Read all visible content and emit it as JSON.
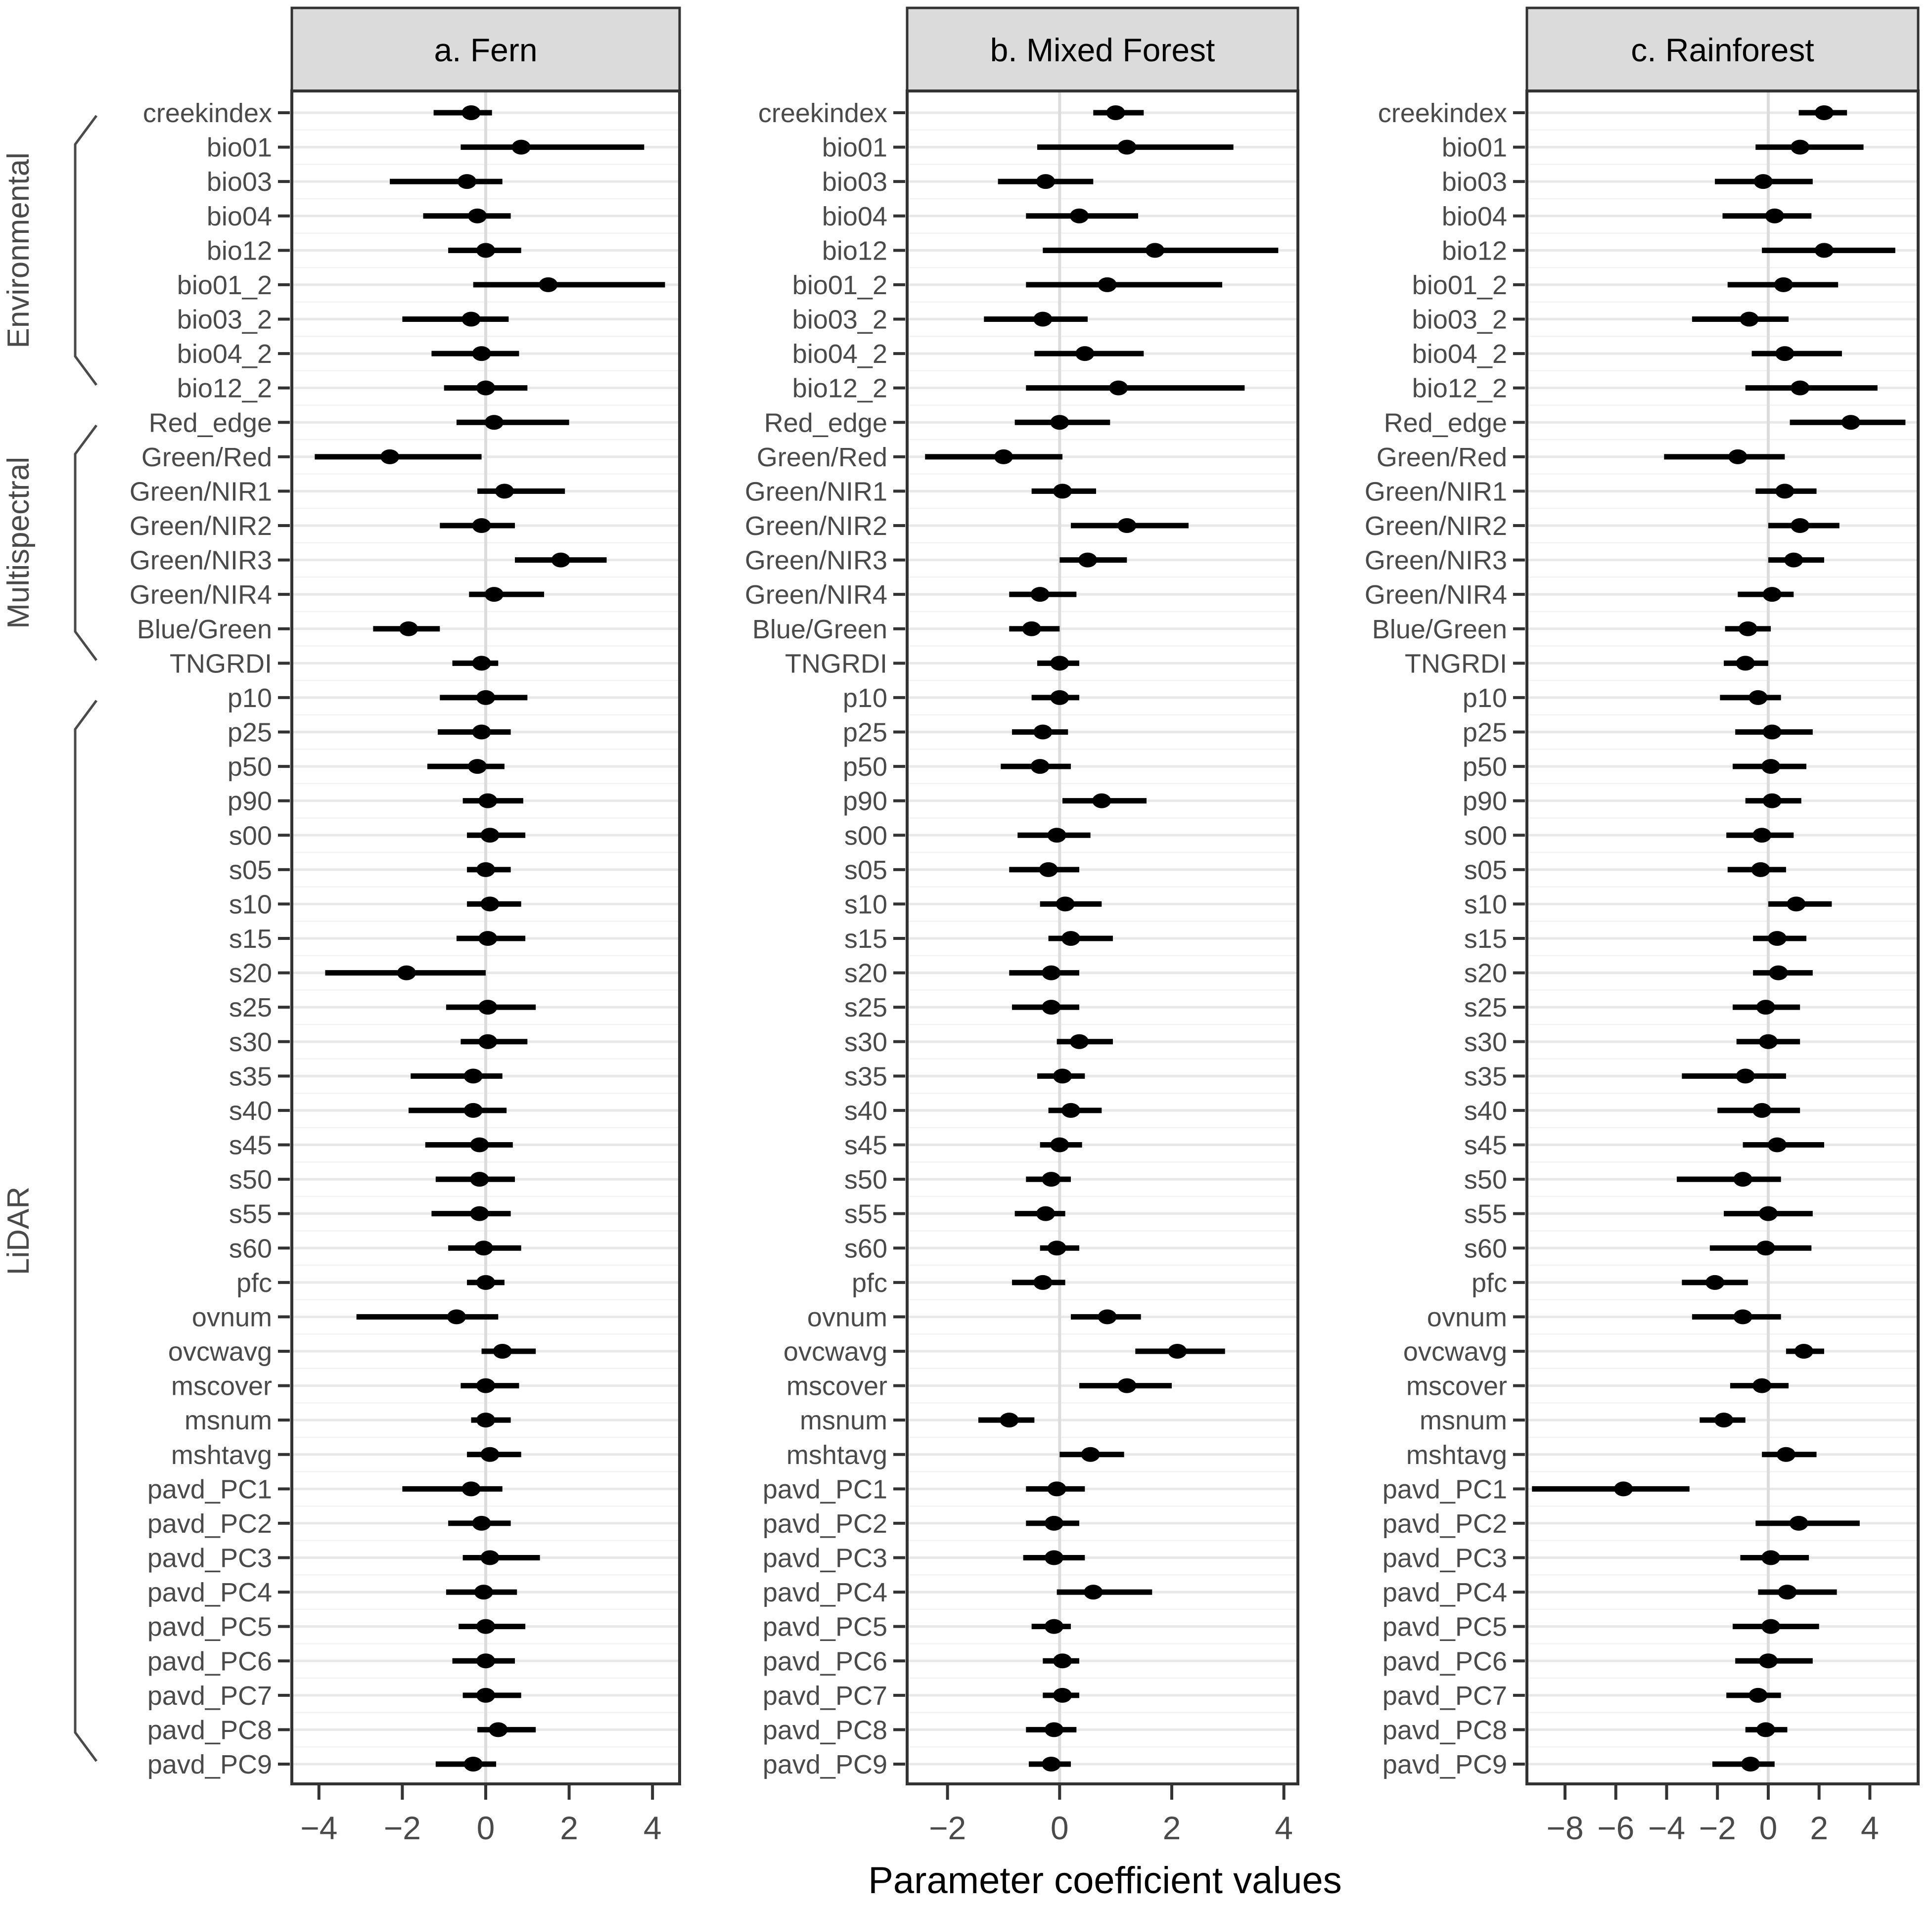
{
  "figure": {
    "colors": {
      "point": "#000000",
      "strip_bg": "#dbdbdb",
      "panel_border": "#333333",
      "grid_major": "#e8e8e8",
      "grid_minor": "#f2f2f2",
      "zero_line": "#dcdcdc",
      "axis_text": "#4a4a4a",
      "strip_text": "#000000",
      "bracket": "#4a4a4a",
      "background": "#ffffff"
    }
  },
  "chart_data": {
    "type": "scatter",
    "subtype": "forest-plot-dot-whisker",
    "xlabel": "Parameter coefficient values",
    "grid": "horizontal-major-minor, vertical zero line only",
    "legend": "none",
    "categories": [
      "creekindex",
      "bio01",
      "bio03",
      "bio04",
      "bio12",
      "bio01_2",
      "bio03_2",
      "bio04_2",
      "bio12_2",
      "Red_edge",
      "Green/Red",
      "Green/NIR1",
      "Green/NIR2",
      "Green/NIR3",
      "Green/NIR4",
      "Blue/Green",
      "TNGRDI",
      "p10",
      "p25",
      "p50",
      "p90",
      "s00",
      "s05",
      "s10",
      "s15",
      "s20",
      "s25",
      "s30",
      "s35",
      "s40",
      "s45",
      "s50",
      "s55",
      "s60",
      "pfc",
      "ovnum",
      "ovcwavg",
      "mscover",
      "msnum",
      "mshtavg",
      "pavd_PC1",
      "pavd_PC2",
      "pavd_PC3",
      "pavd_PC4",
      "pavd_PC5",
      "pavd_PC6",
      "pavd_PC7",
      "pavd_PC8",
      "pavd_PC9"
    ],
    "groups": [
      {
        "label": "Environmental",
        "from": 0,
        "to": 8
      },
      {
        "label": "Multispectral",
        "from": 9,
        "to": 16
      },
      {
        "label": "LiDAR",
        "from": 17,
        "to": 48
      }
    ],
    "value_format": "[estimate, ci_low, ci_high]",
    "panels": [
      {
        "title": "a. Fern",
        "xlim": [
          -4.65,
          4.65
        ],
        "xticks": [
          -4,
          -2,
          0,
          2,
          4
        ],
        "points": [
          [
            -0.35,
            -1.25,
            0.15
          ],
          [
            0.85,
            -0.6,
            3.8
          ],
          [
            -0.45,
            -2.3,
            0.4
          ],
          [
            -0.2,
            -1.5,
            0.6
          ],
          [
            0.0,
            -0.9,
            0.85
          ],
          [
            1.5,
            -0.3,
            4.3
          ],
          [
            -0.35,
            -2.0,
            0.55
          ],
          [
            -0.1,
            -1.3,
            0.8
          ],
          [
            0.0,
            -1.0,
            1.0
          ],
          [
            0.2,
            -0.7,
            2.0
          ],
          [
            -2.3,
            -4.1,
            -0.1
          ],
          [
            0.45,
            -0.2,
            1.9
          ],
          [
            -0.1,
            -1.1,
            0.7
          ],
          [
            1.8,
            0.7,
            2.9
          ],
          [
            0.2,
            -0.4,
            1.4
          ],
          [
            -1.85,
            -2.7,
            -1.1
          ],
          [
            -0.1,
            -0.8,
            0.3
          ],
          [
            0.0,
            -1.1,
            1.0
          ],
          [
            -0.1,
            -1.15,
            0.6
          ],
          [
            -0.2,
            -1.4,
            0.45
          ],
          [
            0.05,
            -0.55,
            0.9
          ],
          [
            0.1,
            -0.45,
            0.95
          ],
          [
            0.0,
            -0.45,
            0.6
          ],
          [
            0.1,
            -0.45,
            0.85
          ],
          [
            0.05,
            -0.7,
            0.95
          ],
          [
            -1.9,
            -3.85,
            0.0
          ],
          [
            0.05,
            -0.95,
            1.2
          ],
          [
            0.05,
            -0.6,
            1.0
          ],
          [
            -0.3,
            -1.8,
            0.4
          ],
          [
            -0.3,
            -1.85,
            0.5
          ],
          [
            -0.15,
            -1.45,
            0.65
          ],
          [
            -0.15,
            -1.2,
            0.7
          ],
          [
            -0.15,
            -1.3,
            0.6
          ],
          [
            -0.05,
            -0.9,
            0.85
          ],
          [
            0.0,
            -0.45,
            0.45
          ],
          [
            -0.7,
            -3.1,
            0.3
          ],
          [
            0.4,
            -0.1,
            1.2
          ],
          [
            0.0,
            -0.6,
            0.8
          ],
          [
            0.0,
            -0.35,
            0.6
          ],
          [
            0.1,
            -0.45,
            0.85
          ],
          [
            -0.35,
            -2.0,
            0.4
          ],
          [
            -0.1,
            -0.9,
            0.6
          ],
          [
            0.1,
            -0.55,
            1.3
          ],
          [
            -0.05,
            -0.95,
            0.75
          ],
          [
            0.0,
            -0.65,
            0.95
          ],
          [
            0.0,
            -0.8,
            0.7
          ],
          [
            0.0,
            -0.55,
            0.85
          ],
          [
            0.3,
            -0.2,
            1.2
          ],
          [
            -0.3,
            -1.2,
            0.25
          ]
        ]
      },
      {
        "title": "b. Mixed Forest",
        "xlim": [
          -2.72,
          4.25
        ],
        "xticks": [
          -2,
          0,
          2,
          4
        ],
        "points": [
          [
            1.0,
            0.6,
            1.5
          ],
          [
            1.2,
            -0.4,
            3.1
          ],
          [
            -0.25,
            -1.1,
            0.6
          ],
          [
            0.35,
            -0.6,
            1.4
          ],
          [
            1.7,
            -0.3,
            3.9
          ],
          [
            0.85,
            -0.6,
            2.9
          ],
          [
            -0.3,
            -1.35,
            0.5
          ],
          [
            0.45,
            -0.45,
            1.5
          ],
          [
            1.05,
            -0.6,
            3.3
          ],
          [
            0.0,
            -0.8,
            0.9
          ],
          [
            -1.0,
            -2.4,
            0.05
          ],
          [
            0.05,
            -0.5,
            0.65
          ],
          [
            1.2,
            0.2,
            2.3
          ],
          [
            0.5,
            0.0,
            1.2
          ],
          [
            -0.35,
            -0.9,
            0.3
          ],
          [
            -0.5,
            -0.9,
            0.0
          ],
          [
            0.0,
            -0.4,
            0.35
          ],
          [
            0.0,
            -0.5,
            0.35
          ],
          [
            -0.3,
            -0.85,
            0.15
          ],
          [
            -0.35,
            -1.05,
            0.2
          ],
          [
            0.75,
            0.05,
            1.55
          ],
          [
            -0.05,
            -0.75,
            0.55
          ],
          [
            -0.2,
            -0.9,
            0.35
          ],
          [
            0.1,
            -0.35,
            0.75
          ],
          [
            0.2,
            -0.2,
            0.95
          ],
          [
            -0.15,
            -0.9,
            0.35
          ],
          [
            -0.15,
            -0.85,
            0.35
          ],
          [
            0.35,
            -0.05,
            0.95
          ],
          [
            0.05,
            -0.4,
            0.45
          ],
          [
            0.2,
            -0.2,
            0.75
          ],
          [
            0.0,
            -0.35,
            0.4
          ],
          [
            -0.15,
            -0.6,
            0.2
          ],
          [
            -0.25,
            -0.8,
            0.1
          ],
          [
            -0.05,
            -0.35,
            0.35
          ],
          [
            -0.3,
            -0.85,
            0.1
          ],
          [
            0.85,
            0.2,
            1.45
          ],
          [
            2.1,
            1.35,
            2.95
          ],
          [
            1.2,
            0.35,
            2.0
          ],
          [
            -0.9,
            -1.45,
            -0.45
          ],
          [
            0.55,
            0.0,
            1.15
          ],
          [
            -0.05,
            -0.6,
            0.45
          ],
          [
            -0.1,
            -0.6,
            0.35
          ],
          [
            -0.1,
            -0.65,
            0.45
          ],
          [
            0.6,
            -0.05,
            1.65
          ],
          [
            -0.1,
            -0.5,
            0.2
          ],
          [
            0.05,
            -0.3,
            0.35
          ],
          [
            0.05,
            -0.3,
            0.35
          ],
          [
            -0.1,
            -0.6,
            0.3
          ],
          [
            -0.15,
            -0.55,
            0.2
          ]
        ]
      },
      {
        "title": "c. Rainforest",
        "xlim": [
          -9.5,
          5.9
        ],
        "xticks": [
          -8,
          -6,
          -4,
          -2,
          0,
          2,
          4
        ],
        "points": [
          [
            2.2,
            1.2,
            3.1
          ],
          [
            1.25,
            -0.5,
            3.75
          ],
          [
            -0.2,
            -2.1,
            1.75
          ],
          [
            0.25,
            -1.8,
            1.7
          ],
          [
            2.2,
            -0.25,
            5.0
          ],
          [
            0.6,
            -1.6,
            2.75
          ],
          [
            -0.75,
            -3.0,
            0.8
          ],
          [
            0.65,
            -0.65,
            2.9
          ],
          [
            1.25,
            -0.9,
            4.3
          ],
          [
            3.25,
            0.85,
            5.4
          ],
          [
            -1.2,
            -4.1,
            0.65
          ],
          [
            0.65,
            -0.5,
            1.9
          ],
          [
            1.25,
            0.0,
            2.8
          ],
          [
            1.0,
            0.0,
            2.2
          ],
          [
            0.15,
            -1.2,
            1.0
          ],
          [
            -0.8,
            -1.7,
            0.1
          ],
          [
            -0.9,
            -1.75,
            0.0
          ],
          [
            -0.4,
            -1.9,
            0.5
          ],
          [
            0.15,
            -1.3,
            1.75
          ],
          [
            0.1,
            -1.4,
            1.5
          ],
          [
            0.15,
            -0.9,
            1.3
          ],
          [
            -0.25,
            -1.65,
            1.0
          ],
          [
            -0.3,
            -1.6,
            0.7
          ],
          [
            1.1,
            0.0,
            2.5
          ],
          [
            0.35,
            -0.6,
            1.5
          ],
          [
            0.4,
            -0.6,
            1.75
          ],
          [
            -0.1,
            -1.4,
            1.25
          ],
          [
            0.0,
            -1.25,
            1.25
          ],
          [
            -0.9,
            -3.4,
            0.7
          ],
          [
            -0.25,
            -2.0,
            1.25
          ],
          [
            0.35,
            -1.0,
            2.2
          ],
          [
            -1.0,
            -3.6,
            0.5
          ],
          [
            0.0,
            -1.75,
            1.75
          ],
          [
            -0.1,
            -2.3,
            1.7
          ],
          [
            -2.1,
            -3.4,
            -0.8
          ],
          [
            -1.0,
            -3.0,
            0.5
          ],
          [
            1.4,
            0.7,
            2.2
          ],
          [
            -0.25,
            -1.5,
            0.8
          ],
          [
            -1.75,
            -2.7,
            -0.9
          ],
          [
            0.7,
            -0.25,
            1.9
          ],
          [
            -5.7,
            -9.3,
            -3.1
          ],
          [
            1.2,
            -0.5,
            3.6
          ],
          [
            0.1,
            -1.1,
            1.6
          ],
          [
            0.75,
            -0.4,
            2.7
          ],
          [
            0.1,
            -1.4,
            2.0
          ],
          [
            0.0,
            -1.3,
            1.75
          ],
          [
            -0.4,
            -1.65,
            0.5
          ],
          [
            -0.1,
            -0.9,
            0.75
          ],
          [
            -0.7,
            -2.2,
            0.25
          ]
        ]
      }
    ]
  }
}
